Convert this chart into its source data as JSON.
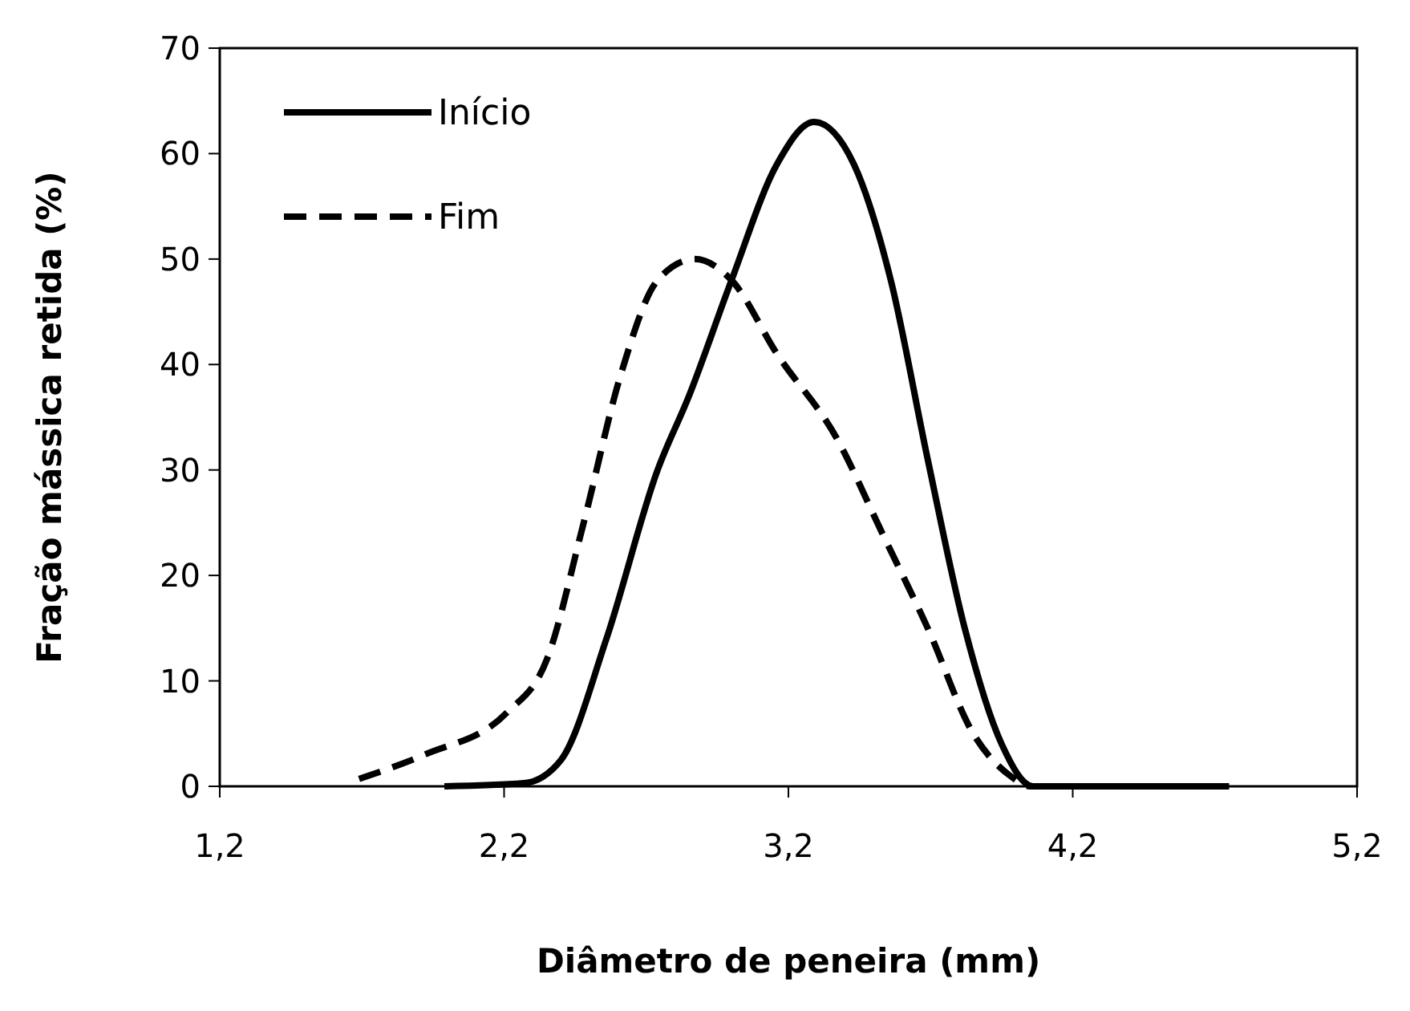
{
  "chart_data": {
    "type": "line",
    "xlabel": "Diâmetro de peneira (mm)",
    "ylabel": "Fração mássica retida (%)",
    "xlim": [
      1.2,
      5.2
    ],
    "xticks": [
      {
        "value": 1.2,
        "label": "1,2"
      },
      {
        "value": 2.2,
        "label": "2,2"
      },
      {
        "value": 3.2,
        "label": "3,2"
      },
      {
        "value": 4.2,
        "label": "4,2"
      },
      {
        "value": 5.2,
        "label": "5,2"
      }
    ],
    "ylim": [
      0,
      70
    ],
    "yticks": [
      0,
      10,
      20,
      30,
      40,
      50,
      60,
      70
    ],
    "grid": false,
    "legend": "top left",
    "marker": "none",
    "series": [
      {
        "name": "Início",
        "color": "#000000",
        "line_style": "solid",
        "x": [
          1.99,
          2.27,
          2.4,
          2.56,
          2.74,
          2.85,
          3.0,
          3.16,
          3.29,
          3.43,
          3.56,
          3.69,
          3.82,
          3.95,
          4.06,
          4.75
        ],
        "values": [
          0,
          0.3,
          2.5,
          14,
          30,
          37,
          48,
          59,
          63,
          59,
          48,
          31,
          15,
          4,
          0,
          0
        ]
      },
      {
        "name": "Fim",
        "color": "#000000",
        "line_style": "dashed",
        "x": [
          1.69,
          1.92,
          2.21,
          2.35,
          2.48,
          2.61,
          2.74,
          2.87,
          3.0,
          3.16,
          3.37,
          3.53,
          3.69,
          3.85,
          3.98,
          4.05,
          4.75
        ],
        "values": [
          0.7,
          3,
          7,
          12,
          25,
          39,
          48,
          50,
          48,
          41,
          33,
          24,
          15,
          5,
          1,
          0,
          0
        ]
      }
    ]
  }
}
